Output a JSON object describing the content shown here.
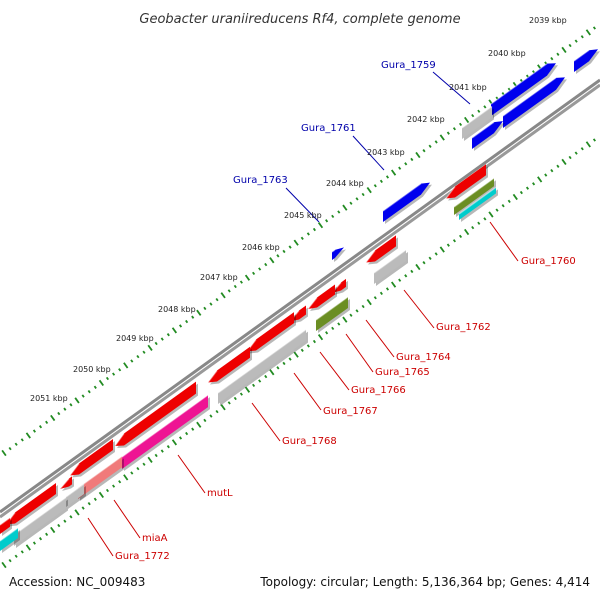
{
  "title": "Geobacter uraniireducens Rf4, complete genome",
  "footer": {
    "accession": "Accession: NC_009483",
    "stats": "Topology: circular; Length: 5,136,364 bp; Genes: 4,414"
  },
  "colors": {
    "forward_cds": "#0000ee",
    "reverse_cds": "#ee0000",
    "gene_gray": "#bbbbbb",
    "pink": "#ee1493",
    "salmon": "#f07a7a",
    "olive": "#6b8e23",
    "cyan": "#00cccc",
    "backbone": "#888888",
    "tick_green": "#228b22",
    "label_forward": "#0000aa",
    "label_reverse": "#cc0000"
  },
  "kbp_labels": [
    "2039 kbp",
    "2040 kbp",
    "2041 kbp",
    "2042 kbp",
    "2043 kbp",
    "2044 kbp",
    "2045 kbp",
    "2046 kbp",
    "2047 kbp",
    "2048 kbp",
    "2049 kbp",
    "2050 kbp",
    "2051 kbp"
  ],
  "forward_labels": [
    "Gura_1759",
    "Gura_1761",
    "Gura_1763"
  ],
  "reverse_labels": [
    "Gura_1760",
    "Gura_1762",
    "Gura_1764",
    "Gura_1765",
    "Gura_1766",
    "Gura_1767",
    "Gura_1768",
    "mutL",
    "miaA",
    "Gura_1772"
  ]
}
